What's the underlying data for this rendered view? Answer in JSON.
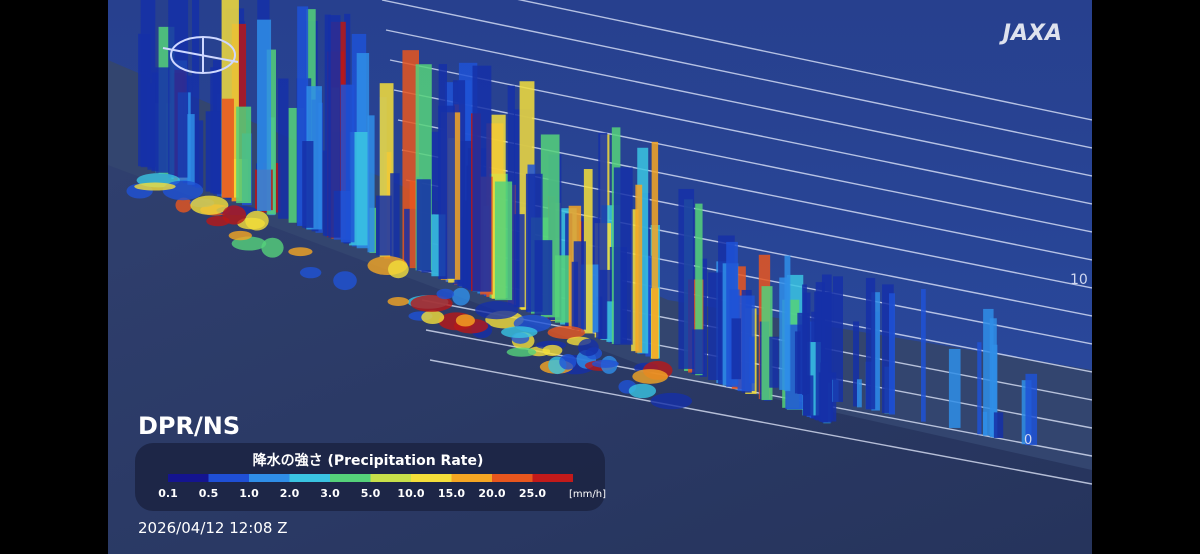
{
  "header": {
    "product": "DPR/NS",
    "logo": "JAXA"
  },
  "axis": {
    "upper_label": "10",
    "lower_label": "0"
  },
  "legend": {
    "title": "降水の強さ (Precipitation Rate)",
    "labels": [
      "0.1",
      "0.5",
      "1.0",
      "2.0",
      "3.0",
      "5.0",
      "10.0",
      "15.0",
      "20.0",
      "25.0"
    ],
    "unit": "[mm/h]",
    "colors": [
      "#141490",
      "#1f4fd6",
      "#2f8ee8",
      "#3ac4e2",
      "#55d27a",
      "#c8e04a",
      "#f4de3a",
      "#f5a623",
      "#e8561e",
      "#c21a1a"
    ]
  },
  "timestamp": "2026/04/12 12:08 Z"
}
